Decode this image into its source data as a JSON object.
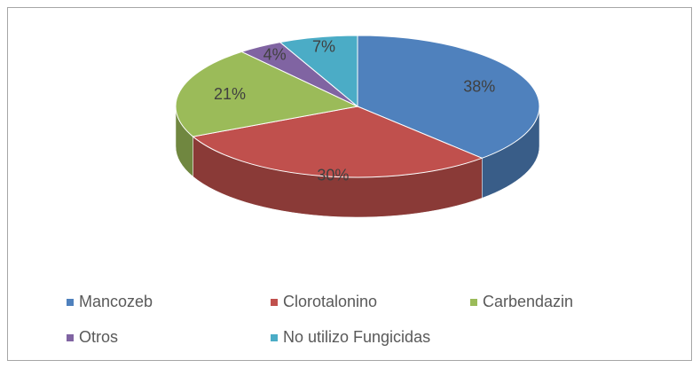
{
  "chart_data": {
    "type": "pie",
    "categories": [
      "Mancozeb",
      "Clorotalonino",
      "Carbendazin",
      "Otros",
      "No utilizo Fungicidas"
    ],
    "values": [
      38,
      30,
      21,
      4,
      7
    ],
    "value_labels": [
      "38%",
      "30%",
      "21%",
      "4%",
      "7%"
    ],
    "colors": [
      "#4f81bd",
      "#c0504d",
      "#9bbb59",
      "#8064a2",
      "#4bacc6"
    ],
    "legend": "bottom"
  }
}
